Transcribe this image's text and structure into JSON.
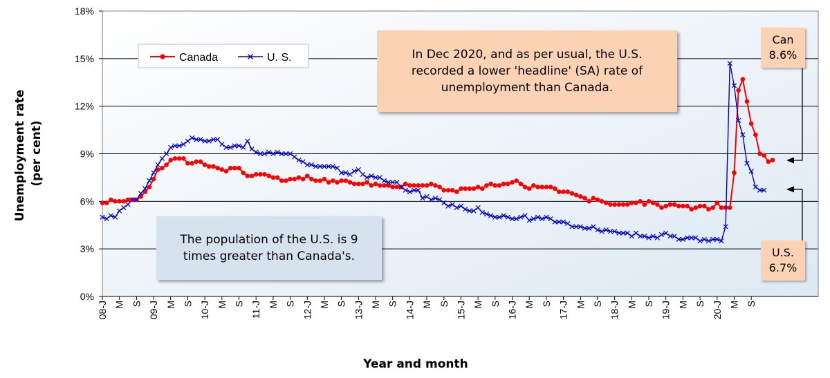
{
  "chart_data": {
    "type": "line",
    "ylabel_lines": [
      "Unemployment rate",
      "(per cent)"
    ],
    "xlabel": "Year and month",
    "ylim": [
      0,
      18
    ],
    "yticks": [
      0,
      3,
      6,
      9,
      12,
      15,
      18
    ],
    "ytick_labels": [
      "0%",
      "3%",
      "6%",
      "9%",
      "12%",
      "15%",
      "18%"
    ],
    "x_start": "2008-01",
    "x_end": "2020-12",
    "xtick_labels": [
      {
        "month": 0,
        "label": "08-J"
      },
      {
        "month": 4,
        "label": "M"
      },
      {
        "month": 8,
        "label": "S"
      },
      {
        "month": 12,
        "label": "09-J"
      },
      {
        "month": 16,
        "label": "M"
      },
      {
        "month": 20,
        "label": "S"
      },
      {
        "month": 24,
        "label": "10-J"
      },
      {
        "month": 28,
        "label": "M"
      },
      {
        "month": 32,
        "label": "S"
      },
      {
        "month": 36,
        "label": "11-J"
      },
      {
        "month": 40,
        "label": "M"
      },
      {
        "month": 44,
        "label": "S"
      },
      {
        "month": 48,
        "label": "12-J"
      },
      {
        "month": 52,
        "label": "M"
      },
      {
        "month": 56,
        "label": "S"
      },
      {
        "month": 60,
        "label": "13-J"
      },
      {
        "month": 64,
        "label": "M"
      },
      {
        "month": 68,
        "label": "S"
      },
      {
        "month": 72,
        "label": "14-J"
      },
      {
        "month": 76,
        "label": "M"
      },
      {
        "month": 80,
        "label": "S"
      },
      {
        "month": 84,
        "label": "15-J"
      },
      {
        "month": 88,
        "label": "M"
      },
      {
        "month": 92,
        "label": "S"
      },
      {
        "month": 96,
        "label": "16-J"
      },
      {
        "month": 100,
        "label": "M"
      },
      {
        "month": 104,
        "label": "S"
      },
      {
        "month": 108,
        "label": "17-J"
      },
      {
        "month": 112,
        "label": "M"
      },
      {
        "month": 116,
        "label": "S"
      },
      {
        "month": 120,
        "label": "18-J"
      },
      {
        "month": 124,
        "label": "M"
      },
      {
        "month": 128,
        "label": "S"
      },
      {
        "month": 132,
        "label": "19-J"
      },
      {
        "month": 136,
        "label": "M"
      },
      {
        "month": 140,
        "label": "S"
      },
      {
        "month": 144,
        "label": "20-J"
      },
      {
        "month": 148,
        "label": "M"
      },
      {
        "month": 152,
        "label": "S"
      }
    ],
    "grid": "horizontal",
    "legend_position": "top-left",
    "series": [
      {
        "name": "Canada",
        "color": "#ff0000",
        "marker": "circle",
        "values": [
          5.9,
          5.9,
          6.1,
          6.0,
          6.0,
          6.0,
          6.1,
          6.1,
          6.1,
          6.3,
          6.6,
          6.9,
          7.4,
          8.0,
          8.1,
          8.3,
          8.6,
          8.7,
          8.7,
          8.7,
          8.4,
          8.4,
          8.5,
          8.5,
          8.3,
          8.2,
          8.2,
          8.1,
          8.0,
          7.9,
          8.1,
          8.1,
          8.1,
          7.8,
          7.6,
          7.6,
          7.7,
          7.7,
          7.7,
          7.6,
          7.5,
          7.5,
          7.3,
          7.3,
          7.4,
          7.4,
          7.5,
          7.4,
          7.6,
          7.4,
          7.3,
          7.3,
          7.4,
          7.2,
          7.3,
          7.2,
          7.3,
          7.3,
          7.2,
          7.1,
          7.1,
          7.1,
          7.2,
          7.0,
          7.1,
          7.0,
          7.0,
          7.0,
          6.9,
          6.9,
          6.9,
          7.1,
          7.0,
          7.0,
          7.0,
          7.0,
          7.0,
          7.1,
          7.0,
          6.9,
          6.7,
          6.7,
          6.7,
          6.6,
          6.8,
          6.8,
          6.8,
          6.8,
          6.9,
          6.8,
          7.0,
          7.1,
          7.0,
          7.0,
          7.1,
          7.1,
          7.2,
          7.3,
          7.1,
          6.9,
          6.8,
          7.0,
          6.9,
          6.9,
          6.9,
          6.9,
          6.8,
          6.6,
          6.6,
          6.6,
          6.5,
          6.4,
          6.3,
          6.2,
          6.0,
          6.2,
          6.1,
          6.0,
          5.9,
          5.8,
          5.8,
          5.8,
          5.8,
          5.8,
          5.9,
          5.9,
          6.0,
          5.8,
          6.0,
          5.9,
          5.8,
          5.6,
          5.7,
          5.8,
          5.8,
          5.7,
          5.7,
          5.7,
          5.5,
          5.6,
          5.7,
          5.7,
          5.5,
          5.6,
          5.9,
          5.6,
          5.6,
          5.6,
          7.8,
          13.0,
          13.7,
          12.3,
          10.9,
          10.2,
          9.0,
          8.9,
          8.5,
          8.6
        ]
      },
      {
        "name": "U. S.",
        "color": "#0000cc",
        "marker": "x",
        "values": [
          5.0,
          4.9,
          5.1,
          5.0,
          5.4,
          5.6,
          5.8,
          6.1,
          6.1,
          6.5,
          6.8,
          7.3,
          7.8,
          8.3,
          8.7,
          9.0,
          9.4,
          9.5,
          9.5,
          9.6,
          9.8,
          10.0,
          9.9,
          9.9,
          9.8,
          9.8,
          9.9,
          9.9,
          9.6,
          9.4,
          9.4,
          9.5,
          9.5,
          9.4,
          9.8,
          9.3,
          9.1,
          9.0,
          9.0,
          9.1,
          9.0,
          9.1,
          9.0,
          9.0,
          9.0,
          8.8,
          8.6,
          8.5,
          8.3,
          8.3,
          8.2,
          8.2,
          8.2,
          8.2,
          8.2,
          8.1,
          7.8,
          7.8,
          7.7,
          7.9,
          8.0,
          7.7,
          7.5,
          7.6,
          7.5,
          7.5,
          7.3,
          7.2,
          7.2,
          7.2,
          6.9,
          6.7,
          6.6,
          6.7,
          6.7,
          6.2,
          6.3,
          6.1,
          6.2,
          6.1,
          5.9,
          5.7,
          5.8,
          5.6,
          5.7,
          5.5,
          5.4,
          5.4,
          5.6,
          5.3,
          5.2,
          5.1,
          5.0,
          5.0,
          5.1,
          5.0,
          4.9,
          4.9,
          5.0,
          5.1,
          4.8,
          4.9,
          5.0,
          4.9,
          5.0,
          4.9,
          4.7,
          4.7,
          4.7,
          4.6,
          4.4,
          4.4,
          4.4,
          4.3,
          4.3,
          4.4,
          4.2,
          4.1,
          4.2,
          4.1,
          4.1,
          4.0,
          4.0,
          4.0,
          3.8,
          4.0,
          3.8,
          3.8,
          3.7,
          3.8,
          3.7,
          3.9,
          4.0,
          3.8,
          3.8,
          3.6,
          3.6,
          3.7,
          3.7,
          3.7,
          3.5,
          3.6,
          3.5,
          3.6,
          3.6,
          3.5,
          4.4,
          14.7,
          13.3,
          11.1,
          10.2,
          8.4,
          7.9,
          6.9,
          6.7,
          6.7
        ]
      }
    ]
  },
  "annotations": {
    "top_note": "In Dec 2020, and as per usual, the U.S. recorded a lower 'headline' (SA) rate of unemployment than Canada.",
    "bottom_note": "The population of the U.S. is  9 times greater than Canada's.",
    "can_label": "Can",
    "can_value": "8.6%",
    "us_label": "U.S.",
    "us_value": "6.7%"
  }
}
